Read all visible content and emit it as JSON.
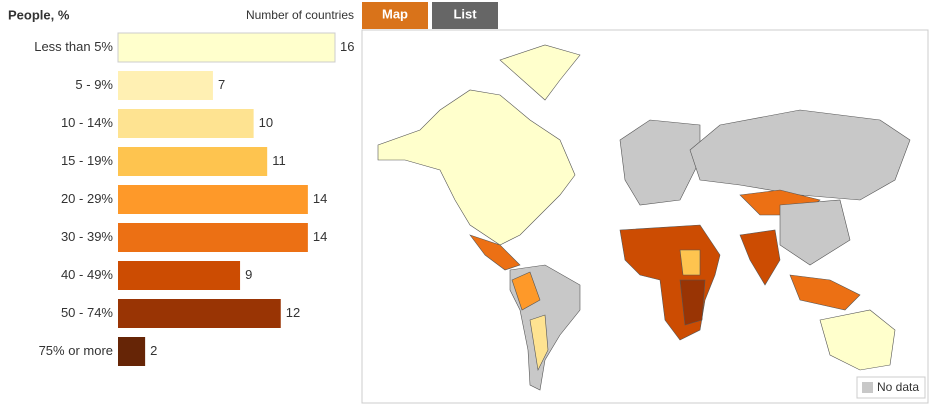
{
  "chart_data": {
    "type": "bar",
    "orientation": "horizontal",
    "title": "People, %",
    "value_axis_label": "Number of countries",
    "categories": [
      "Less than 5%",
      "5 - 9%",
      "10 - 14%",
      "15 - 19%",
      "20 - 29%",
      "30 - 39%",
      "40 - 49%",
      "50 - 74%",
      "75% or more"
    ],
    "values": [
      16,
      7,
      10,
      11,
      14,
      14,
      9,
      12,
      2
    ],
    "colors": [
      "#ffffcc",
      "#fff0b3",
      "#fee391",
      "#fec44f",
      "#fe9929",
      "#ec7014",
      "#cc4c02",
      "#993404",
      "#662506"
    ]
  },
  "tabs": [
    "Map",
    "List"
  ],
  "map": {
    "no_data_label": "No data"
  }
}
